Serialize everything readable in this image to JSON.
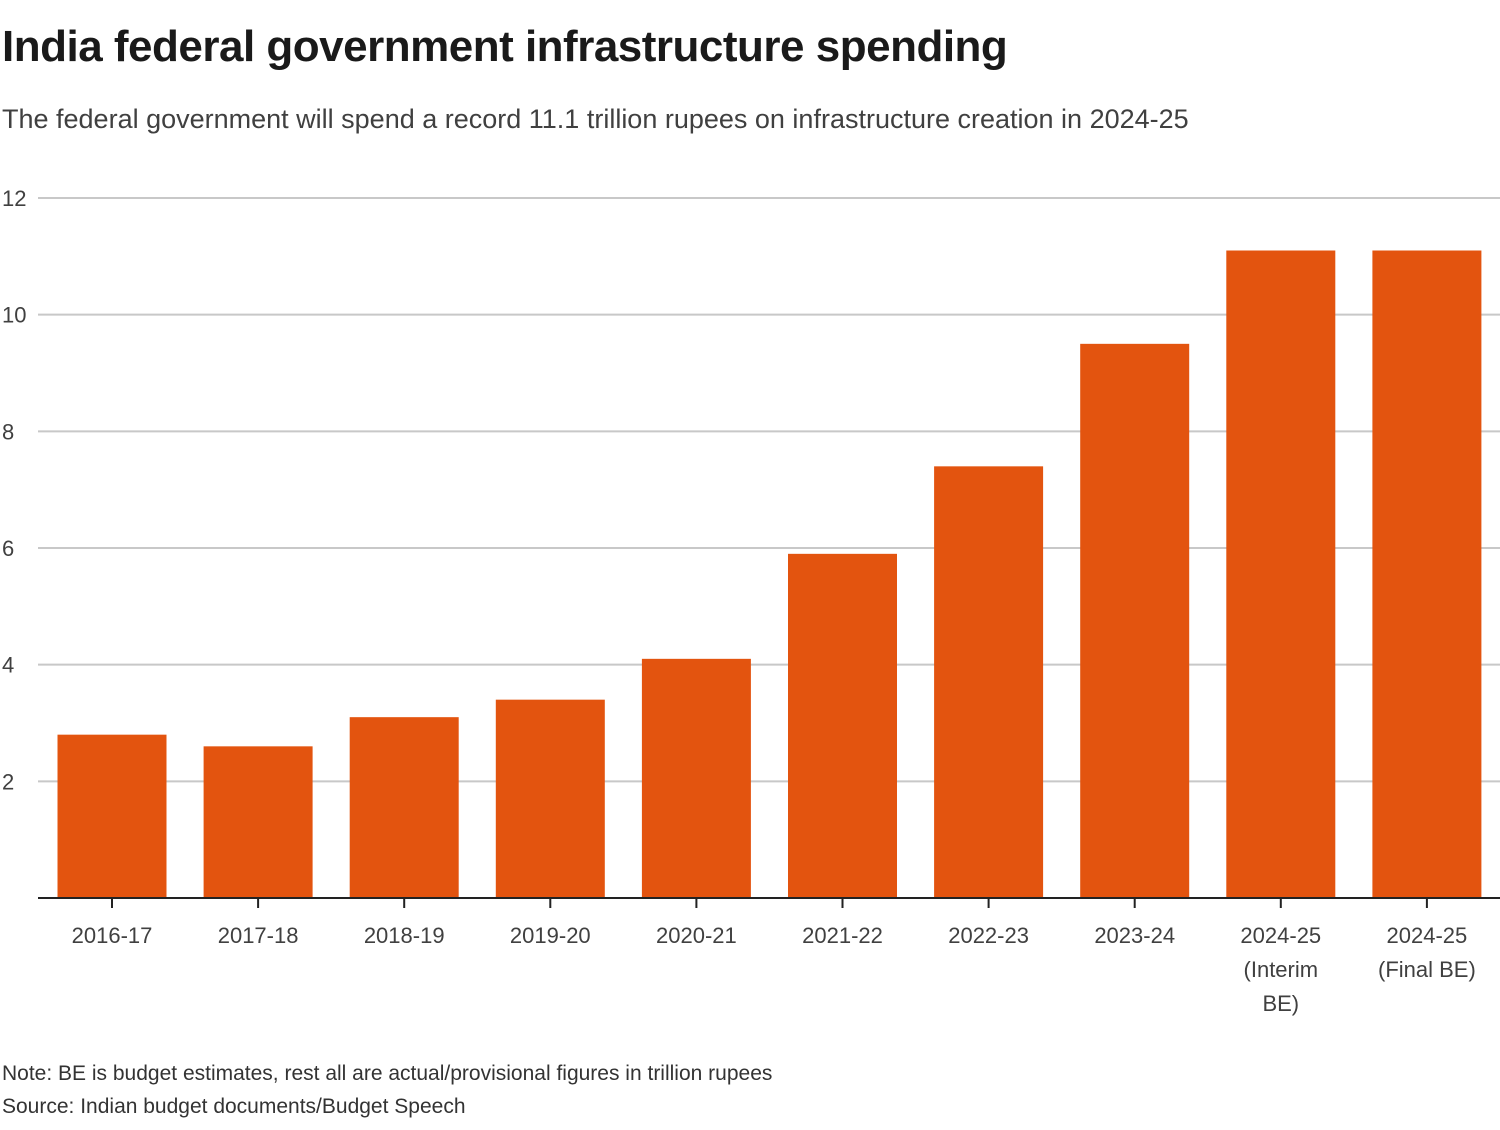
{
  "colors": {
    "bar": "#e3540f",
    "grid": "#c8c8c8",
    "axis": "#222222",
    "text": "#404040"
  },
  "header": {
    "title": "India federal government infrastructure spending",
    "subtitle": "The federal government will spend a record 11.1 trillion rupees on infrastructure creation in 2024-25"
  },
  "footer": {
    "note": "Note: BE is budget estimates, rest all are actual/provisional figures in trillion rupees",
    "source": "Source: Indian budget documents/Budget Speech"
  },
  "chart_data": {
    "type": "bar",
    "title": "India federal government infrastructure spending",
    "subtitle": "The federal government will spend a record 11.1 trillion rupees on infrastructure creation in 2024-25",
    "xlabel": "",
    "ylabel": "",
    "unit": "trillion rupees",
    "categories": [
      [
        "2016-17"
      ],
      [
        "2017-18"
      ],
      [
        "2018-19"
      ],
      [
        "2019-20"
      ],
      [
        "2020-21"
      ],
      [
        "2021-22"
      ],
      [
        "2022-23"
      ],
      [
        "2023-24"
      ],
      [
        "2024-25",
        "(Interim",
        "BE)"
      ],
      [
        "2024-25",
        "(Final BE)"
      ]
    ],
    "values": [
      2.8,
      2.6,
      3.1,
      3.4,
      4.1,
      5.9,
      7.4,
      9.5,
      11.1,
      11.1
    ],
    "ylim": [
      0,
      12
    ],
    "yticks": [
      2,
      4,
      6,
      8,
      10,
      12
    ],
    "grid": true,
    "legend": "none"
  }
}
